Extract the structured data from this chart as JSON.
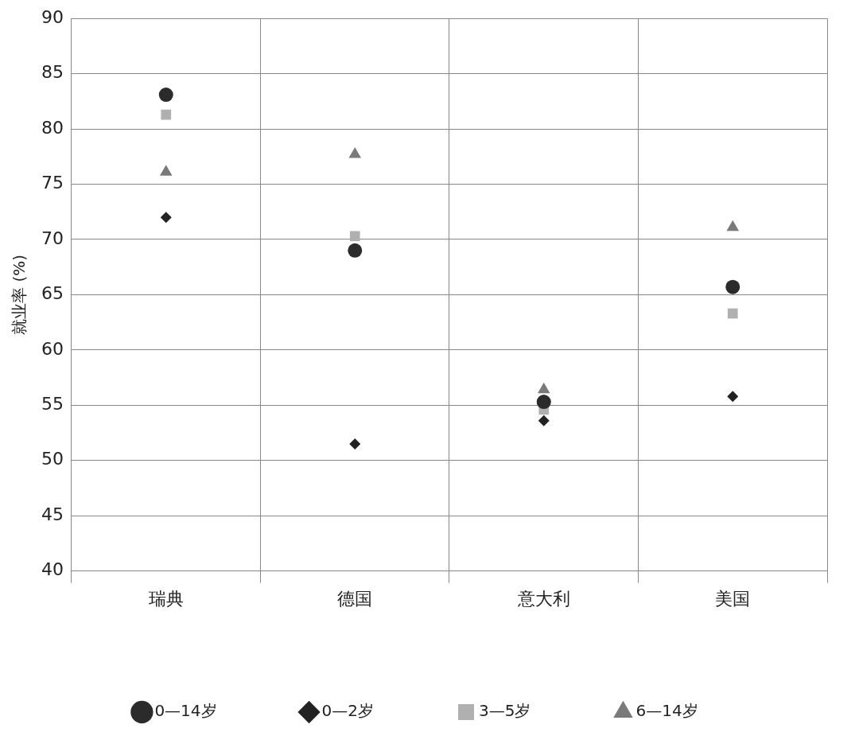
{
  "chart_data": {
    "type": "scatter",
    "ylabel": "就业率 (%)",
    "categories": [
      "瑞典",
      "德国",
      "意大利",
      "美国"
    ],
    "series": [
      {
        "name": "0—14岁",
        "color": "#2b2b2b",
        "marker": "circle",
        "values": [
          83.1,
          69.0,
          55.3,
          65.7
        ]
      },
      {
        "name": "0—2岁",
        "color": "#222222",
        "marker": "diamond",
        "values": [
          72.0,
          51.5,
          53.6,
          55.8
        ]
      },
      {
        "name": "3—5岁",
        "color": "#b0b0b0",
        "marker": "square",
        "values": [
          81.3,
          70.3,
          54.6,
          63.3
        ]
      },
      {
        "name": "6—14岁",
        "color": "#7a7a7a",
        "marker": "triangle",
        "values": [
          76.1,
          77.7,
          56.4,
          71.1
        ]
      }
    ],
    "ylim": [
      40,
      90
    ],
    "yticks": [
      40,
      45,
      50,
      55,
      60,
      65,
      70,
      75,
      80,
      85,
      90
    ],
    "grid": true,
    "legend": "bottom"
  }
}
